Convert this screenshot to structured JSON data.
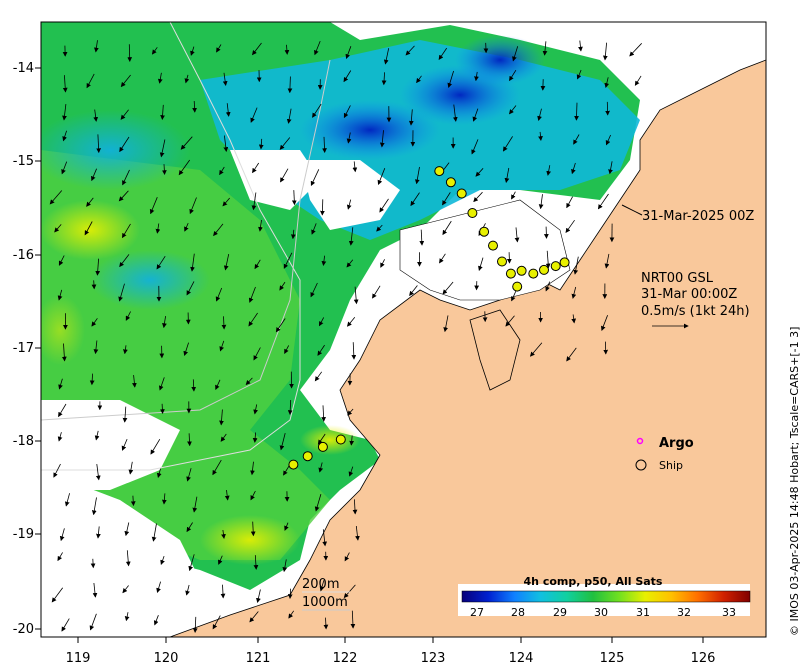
{
  "map": {
    "lon_ticks": [
      "119",
      "120",
      "121",
      "122",
      "123",
      "124",
      "125",
      "126"
    ],
    "lat_ticks": [
      "-14",
      "-15",
      "-16",
      "-17",
      "-18",
      "-19",
      "-20"
    ],
    "lon_range": [
      118.6,
      126.7
    ],
    "lat_range": [
      -20.1,
      -13.5
    ],
    "colors": {
      "land": "#f9c89b",
      "nodata": "#ffffff",
      "frame": "#000000"
    }
  },
  "annotations": {
    "ship_time": "31-Mar-2025 00Z",
    "product_line1": "NRT00 GSL",
    "product_line2": "31-Mar 00:00Z",
    "product_line3": "0.5m/s (1kt 24h)",
    "contour_1": "200m",
    "contour_2": "1000m"
  },
  "legend": {
    "argo_label": "Argo",
    "ship_label": "Ship",
    "argo_color": "#ff00ff",
    "ship_color": "#000000"
  },
  "colorbar": {
    "title": "4h comp, p50, All Sats",
    "ticks": [
      "27",
      "28",
      "29",
      "30",
      "31",
      "32",
      "33"
    ],
    "range": [
      26.5,
      33.5
    ],
    "colors": [
      "#08007a",
      "#0020d0",
      "#1080ff",
      "#10c0e0",
      "#10d0a0",
      "#20c040",
      "#70e020",
      "#e8f000",
      "#ffc000",
      "#ff7000",
      "#d02000",
      "#800000"
    ]
  },
  "credit": "© IMOS 03-Apr-2025 14:48 Hobart; Tscale=CARS+[-1 3]",
  "ship_track": [
    {
      "lon": 121.95,
      "lat": -17.98
    },
    {
      "lon": 121.75,
      "lat": -18.06
    },
    {
      "lon": 121.58,
      "lat": -18.16
    },
    {
      "lon": 121.42,
      "lat": -18.25
    },
    {
      "lon": 123.05,
      "lat": -15.1
    },
    {
      "lon": 123.18,
      "lat": -15.22
    },
    {
      "lon": 123.3,
      "lat": -15.34
    },
    {
      "lon": 123.42,
      "lat": -15.55
    },
    {
      "lon": 123.55,
      "lat": -15.75
    },
    {
      "lon": 123.65,
      "lat": -15.9
    },
    {
      "lon": 123.75,
      "lat": -16.07
    },
    {
      "lon": 123.85,
      "lat": -16.2
    },
    {
      "lon": 123.97,
      "lat": -16.17
    },
    {
      "lon": 124.1,
      "lat": -16.2
    },
    {
      "lon": 124.22,
      "lat": -16.16
    },
    {
      "lon": 124.35,
      "lat": -16.12
    },
    {
      "lon": 124.45,
      "lat": -16.08
    },
    {
      "lon": 123.92,
      "lat": -16.34
    }
  ]
}
